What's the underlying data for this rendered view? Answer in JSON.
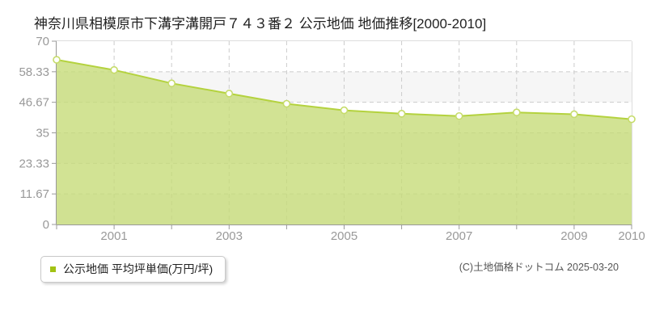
{
  "title": "神奈川県相模原市下溝字溝開戸７４３番２ 公示地価 地価推移[2000-2010]",
  "legend": {
    "label": "公示地価 平均坪単価(万円/坪)",
    "marker_color": "#a2c214"
  },
  "copyright": "(C)土地価格ドットコム 2025-03-20",
  "chart_data": {
    "type": "area",
    "title": "神奈川県相模原市下溝字溝開戸７４３番２ 公示地価 地価推移[2000-2010]",
    "xlabel": "",
    "ylabel": "",
    "x": [
      2000,
      2001,
      2002,
      2003,
      2004,
      2005,
      2006,
      2007,
      2008,
      2009,
      2010
    ],
    "series": [
      {
        "name": "公示地価 平均坪単価(万円/坪)",
        "values": [
          62.9,
          59.0,
          53.9,
          50.0,
          46.1,
          43.6,
          42.3,
          41.4,
          42.8,
          42.1,
          40.2
        ]
      }
    ],
    "ylim": [
      0,
      70
    ],
    "xlim": [
      2000,
      2010
    ],
    "yticks": [
      0,
      11.67,
      23.33,
      35,
      46.67,
      58.33,
      70
    ],
    "ytick_labels": [
      "0",
      "11.67",
      "23.33",
      "35",
      "46.67",
      "58.33",
      "70"
    ],
    "xtick_years": [
      2001,
      2003,
      2005,
      2007,
      2009,
      2010
    ],
    "xtick_labels": [
      "2001",
      "2003",
      "2005",
      "2007",
      "2009",
      "2010"
    ],
    "grid": true,
    "grid_style": "dashed",
    "legend_position": "bottom-left",
    "colors": {
      "area_fill": "rgba(197,219,118,0.78)",
      "line": "#b4d23e",
      "marker_fill": "#ffffff",
      "marker_stroke": "#c6dc6a",
      "band_gray": "#f6f6f6",
      "band_white": "#ffffff",
      "gridline": "#cccccc",
      "axis": "#999999",
      "plot_border": "#dddddd",
      "tick_label": "#999999"
    }
  }
}
